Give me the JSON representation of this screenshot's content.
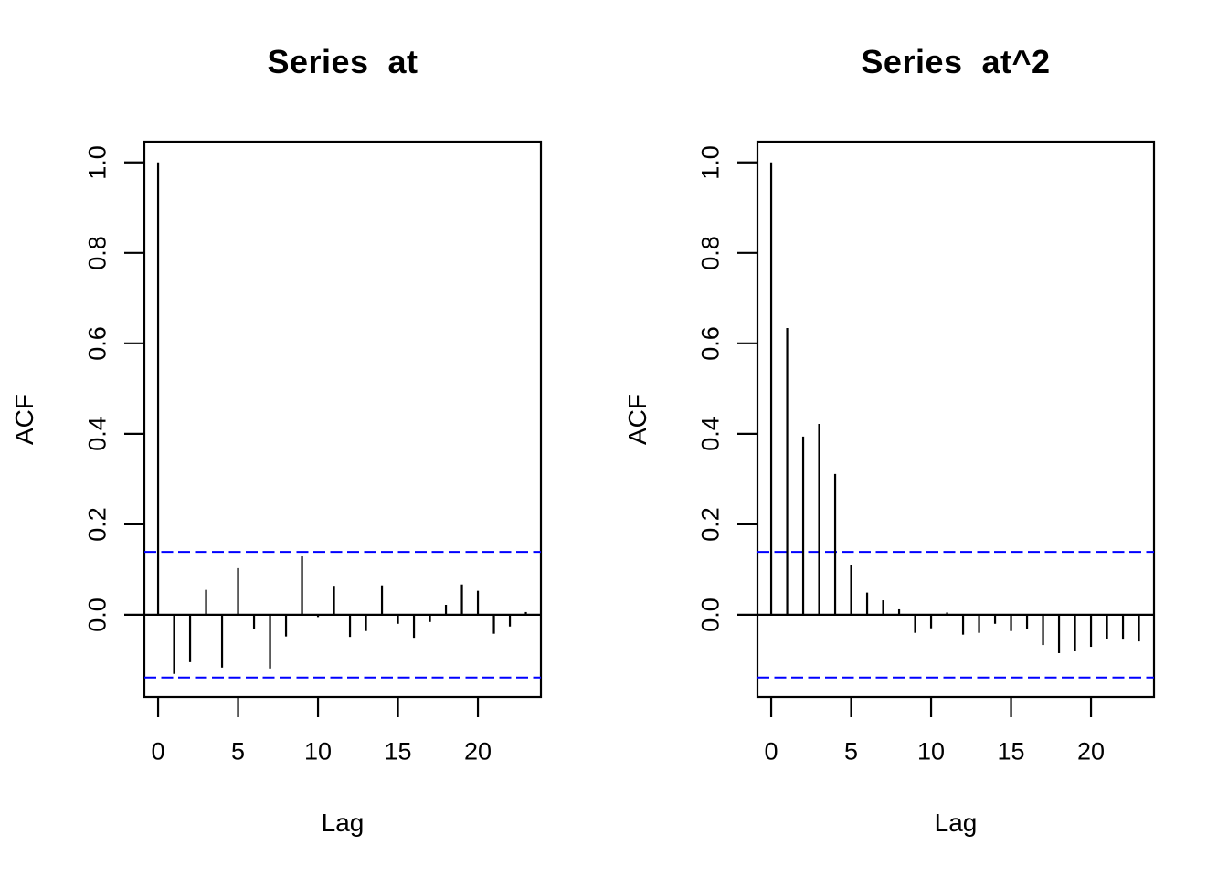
{
  "figure": {
    "background": "#ffffff",
    "axis_color": "#000000",
    "bar_color": "#000000",
    "conf_band_color": "#0000ff",
    "conf_band_style": "dashed"
  },
  "chart_data": [
    {
      "type": "bar",
      "title": "Series  at",
      "xlabel": "Lag",
      "ylabel": "ACF",
      "legend": null,
      "grid": false,
      "xlim": [
        -0.86,
        23.94
      ],
      "ylim": [
        -0.182,
        1.046
      ],
      "x_ticks": [
        0,
        5,
        10,
        15,
        20
      ],
      "x_tick_labels": [
        "0",
        "5",
        "10",
        "15",
        "20"
      ],
      "y_ticks": [
        1.0,
        0.8,
        0.6,
        0.4,
        0.2,
        0.0
      ],
      "y_tick_labels": [
        "1.0",
        "0.8",
        "0.6",
        "0.4",
        "0.2",
        "0.0"
      ],
      "conf_bounds": [
        0.139,
        -0.139
      ],
      "lags": [
        0,
        1,
        2,
        3,
        4,
        5,
        6,
        7,
        8,
        9,
        10,
        11,
        12,
        13,
        14,
        15,
        16,
        17,
        18,
        19,
        20,
        21,
        22,
        23
      ],
      "values": [
        1.0,
        -0.131,
        -0.105,
        0.055,
        -0.117,
        0.103,
        -0.032,
        -0.119,
        -0.048,
        0.129,
        -0.005,
        0.062,
        -0.049,
        -0.036,
        0.065,
        -0.02,
        -0.051,
        -0.016,
        0.022,
        0.067,
        0.053,
        -0.042,
        -0.026,
        0.006
      ]
    },
    {
      "type": "bar",
      "title": "Series  at^2",
      "xlabel": "Lag",
      "ylabel": "ACF",
      "legend": null,
      "grid": false,
      "xlim": [
        -0.86,
        23.94
      ],
      "ylim": [
        -0.182,
        1.046
      ],
      "x_ticks": [
        0,
        5,
        10,
        15,
        20
      ],
      "x_tick_labels": [
        "0",
        "5",
        "10",
        "15",
        "20"
      ],
      "y_ticks": [
        1.0,
        0.8,
        0.6,
        0.4,
        0.2,
        0.0
      ],
      "y_tick_labels": [
        "1.0",
        "0.8",
        "0.6",
        "0.4",
        "0.2",
        "0.0"
      ],
      "conf_bounds": [
        0.139,
        -0.139
      ],
      "lags": [
        0,
        1,
        2,
        3,
        4,
        5,
        6,
        7,
        8,
        9,
        10,
        11,
        12,
        13,
        14,
        15,
        16,
        17,
        18,
        19,
        20,
        21,
        22,
        23
      ],
      "values": [
        1.0,
        0.634,
        0.394,
        0.422,
        0.311,
        0.109,
        0.049,
        0.032,
        0.012,
        -0.04,
        -0.03,
        0.005,
        -0.044,
        -0.04,
        -0.02,
        -0.036,
        -0.032,
        -0.067,
        -0.085,
        -0.081,
        -0.071,
        -0.053,
        -0.055,
        -0.059
      ]
    }
  ]
}
